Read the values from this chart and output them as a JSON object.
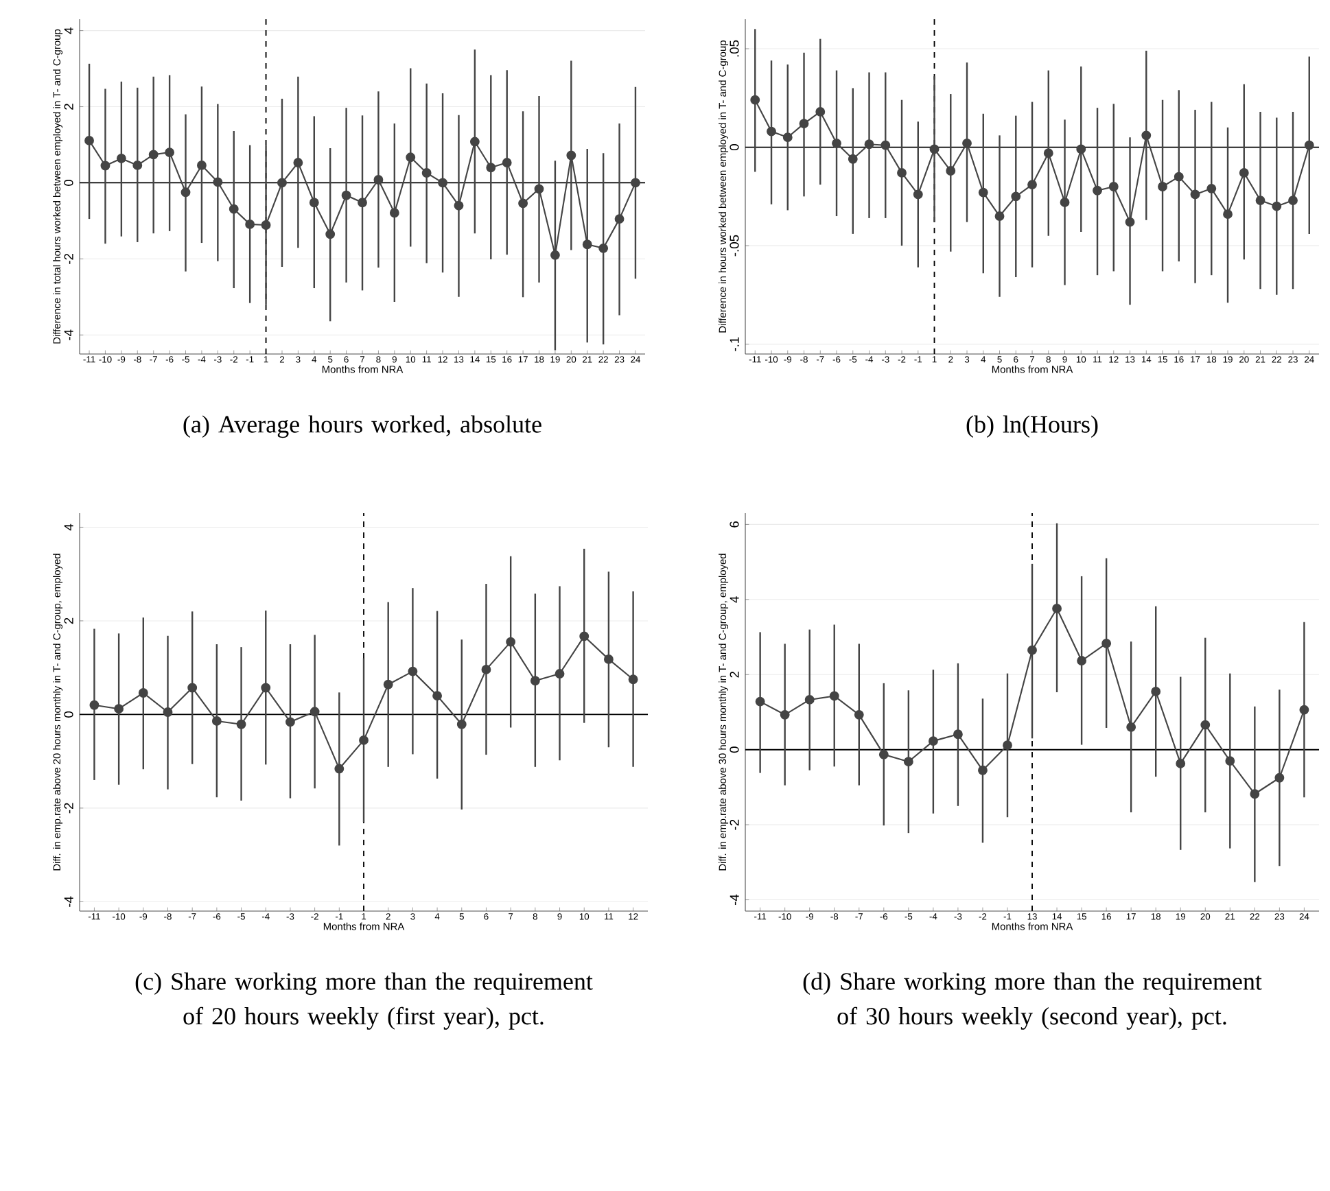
{
  "chart_data": [
    {
      "type": "line",
      "title": "(a) Average hours worked, absolute",
      "xlabel": "Months from NRA",
      "ylabel": "Difference in total hours worked between employed in T- and C-group",
      "categories": [
        "-11",
        "-10",
        "-9",
        "-8",
        "-7",
        "-6",
        "-5",
        "-4",
        "-3",
        "-2",
        "-1",
        "1",
        "2",
        "3",
        "4",
        "5",
        "6",
        "7",
        "8",
        "9",
        "10",
        "11",
        "12",
        "13",
        "14",
        "15",
        "16",
        "17",
        "18",
        "19",
        "20",
        "21",
        "22",
        "23",
        "24"
      ],
      "series": [
        {
          "color": "#444444",
          "values": [
            1.11,
            0.45,
            0.64,
            0.46,
            0.74,
            0.8,
            -0.25,
            0.46,
            0.02,
            -0.69,
            -1.09,
            -1.11,
            0,
            0.53,
            -0.52,
            -1.35,
            -0.33,
            -0.52,
            0.08,
            -0.79,
            0.67,
            0.26,
            0,
            -0.6,
            1.08,
            0.4,
            0.53,
            -0.54,
            -0.16,
            -1.9,
            0.72,
            -1.62,
            -1.72,
            -0.95,
            0
          ],
          "errors": [
            [
              -0.95,
              3.13
            ],
            [
              -1.6,
              2.47
            ],
            [
              -1.41,
              2.66
            ],
            [
              -1.56,
              2.5
            ],
            [
              -1.33,
              2.79
            ],
            [
              -1.27,
              2.83
            ],
            [
              -2.33,
              1.8
            ],
            [
              -1.58,
              2.53
            ],
            [
              -2.06,
              2.07
            ],
            [
              -2.77,
              1.36
            ],
            [
              -3.16,
              0.99
            ],
            [
              -3.2,
              0.98
            ],
            [
              -2.21,
              2.21
            ],
            [
              -1.71,
              2.79
            ],
            [
              -2.77,
              1.75
            ],
            [
              -3.64,
              0.91
            ],
            [
              -2.62,
              1.97
            ],
            [
              -2.83,
              1.77
            ],
            [
              -2.23,
              2.4
            ],
            [
              -3.13,
              1.56
            ],
            [
              -1.68,
              3.01
            ],
            [
              -2.11,
              2.61
            ],
            [
              -2.36,
              2.35
            ],
            [
              -3.0,
              1.78
            ],
            [
              -1.33,
              3.5
            ],
            [
              -2.01,
              2.83
            ],
            [
              -1.89,
              2.96
            ],
            [
              -3.01,
              1.88
            ],
            [
              -2.62,
              2.28
            ],
            [
              -4.4,
              0.58
            ],
            [
              -1.77,
              3.21
            ],
            [
              -4.2,
              0.89
            ],
            [
              -4.25,
              0.78
            ],
            [
              -3.48,
              1.56
            ],
            [
              -2.52,
              2.52
            ]
          ]
        }
      ],
      "ylim": [
        -4.5,
        4.3
      ],
      "yticks": [
        -4,
        -2,
        0,
        2,
        4
      ],
      "grid": "y",
      "marker": "circle",
      "line_style": "solid",
      "ref_lines": [
        {
          "axis": "y",
          "value": 0,
          "line_style": "solid",
          "color": "#000000"
        },
        {
          "axis": "x",
          "value": "1",
          "line_style": "dashed",
          "color": "#000000"
        }
      ]
    },
    {
      "type": "line",
      "title": "(b)  ln(Hours)",
      "xlabel": "Months from NRA",
      "ylabel": "Difference in hours worked between employed in T- and C-group",
      "categories": [
        "-11",
        "-10",
        "-9",
        "-8",
        "-7",
        "-6",
        "-5",
        "-4",
        "-3",
        "-2",
        "-1",
        "1",
        "2",
        "3",
        "4",
        "5",
        "6",
        "7",
        "8",
        "9",
        "10",
        "11",
        "12",
        "13",
        "14",
        "15",
        "16",
        "17",
        "18",
        "19",
        "20",
        "21",
        "22",
        "23",
        "24"
      ],
      "series": [
        {
          "color": "#444444",
          "values": [
            0.024,
            0.008,
            0.005,
            0.012,
            0.018,
            0.002,
            -0.006,
            0.0015,
            0.001,
            -0.013,
            -0.024,
            -0.001,
            -0.012,
            0.002,
            -0.023,
            -0.035,
            -0.025,
            -0.019,
            -0.003,
            -0.028,
            -0.001,
            -0.022,
            -0.02,
            -0.038,
            0.006,
            -0.02,
            -0.015,
            -0.024,
            -0.021,
            -0.034,
            -0.013,
            -0.027,
            -0.03,
            -0.027,
            0.001
          ],
          "errors": [
            [
              -0.0125,
              0.06
            ],
            [
              -0.029,
              0.044
            ],
            [
              -0.032,
              0.042
            ],
            [
              -0.025,
              0.048
            ],
            [
              -0.019,
              0.055
            ],
            [
              -0.035,
              0.039
            ],
            [
              -0.044,
              0.03
            ],
            [
              -0.036,
              0.038
            ],
            [
              -0.036,
              0.038
            ],
            [
              -0.05,
              0.024
            ],
            [
              -0.061,
              0.013
            ],
            [
              -0.038,
              0.036
            ],
            [
              -0.053,
              0.027
            ],
            [
              -0.038,
              0.043
            ],
            [
              -0.064,
              0.017
            ],
            [
              -0.076,
              0.006
            ],
            [
              -0.066,
              0.016
            ],
            [
              -0.061,
              0.023
            ],
            [
              -0.045,
              0.039
            ],
            [
              -0.07,
              0.014
            ],
            [
              -0.043,
              0.041
            ],
            [
              -0.065,
              0.02
            ],
            [
              -0.063,
              0.022
            ],
            [
              -0.08,
              0.005
            ],
            [
              -0.037,
              0.049
            ],
            [
              -0.063,
              0.024
            ],
            [
              -0.058,
              0.029
            ],
            [
              -0.069,
              0.019
            ],
            [
              -0.065,
              0.023
            ],
            [
              -0.079,
              0.01
            ],
            [
              -0.057,
              0.032
            ],
            [
              -0.072,
              0.018
            ],
            [
              -0.075,
              0.015
            ],
            [
              -0.072,
              0.018
            ],
            [
              -0.044,
              0.046
            ]
          ]
        }
      ],
      "ylim": [
        -0.105,
        0.065
      ],
      "yticks": [
        {
          "value": -0.1,
          "label": "-.1"
        },
        {
          "value": -0.05,
          "label": "-.05"
        },
        0,
        {
          "value": 0.05,
          "label": ".05"
        }
      ],
      "grid": "y",
      "marker": "circle",
      "line_style": "solid",
      "ref_lines": [
        {
          "axis": "y",
          "value": 0,
          "line_style": "solid",
          "color": "#000000"
        },
        {
          "axis": "x",
          "value": "1",
          "line_style": "dashed",
          "color": "#000000"
        }
      ]
    },
    {
      "type": "line",
      "title": "(c) Share working more than the requirement of 20 hours weekly (first year), pct.",
      "xlabel": "Months from NRA",
      "ylabel": "Diff. in emp.rate above 20 hours monthly in T- and C-group, employed",
      "categories": [
        "-11",
        "-10",
        "-9",
        "-8",
        "-7",
        "-6",
        "-5",
        "-4",
        "-3",
        "-2",
        "-1",
        "1",
        "2",
        "3",
        "4",
        "5",
        "6",
        "7",
        "8",
        "9",
        "10",
        "11",
        "12"
      ],
      "series": [
        {
          "color": "#444444",
          "values": [
            0.2,
            0.12,
            0.46,
            0.05,
            0.57,
            -0.14,
            -0.21,
            0.57,
            -0.16,
            0.06,
            -1.16,
            -0.55,
            0.64,
            0.92,
            0.4,
            -0.21,
            0.96,
            1.55,
            0.72,
            0.87,
            1.67,
            1.18,
            0.75
          ],
          "errors": [
            [
              -1.4,
              1.83
            ],
            [
              -1.5,
              1.73
            ],
            [
              -1.17,
              2.07
            ],
            [
              -1.6,
              1.68
            ],
            [
              -1.06,
              2.2
            ],
            [
              -1.77,
              1.5
            ],
            [
              -1.84,
              1.44
            ],
            [
              -1.07,
              2.22
            ],
            [
              -1.79,
              1.5
            ],
            [
              -1.58,
              1.7
            ],
            [
              -2.8,
              0.47
            ],
            [
              -2.3,
              1.2
            ],
            [
              -1.12,
              2.4
            ],
            [
              -0.85,
              2.7
            ],
            [
              -1.37,
              2.21
            ],
            [
              -2.03,
              1.6
            ],
            [
              -0.86,
              2.79
            ],
            [
              -0.28,
              3.38
            ],
            [
              -1.12,
              2.58
            ],
            [
              -0.98,
              2.74
            ],
            [
              -0.18,
              3.54
            ],
            [
              -0.7,
              3.05
            ],
            [
              -1.12,
              2.63
            ]
          ]
        }
      ],
      "ylim": [
        -4.2,
        4.3
      ],
      "yticks": [
        -4,
        -2,
        0,
        2,
        4
      ],
      "grid": "y",
      "marker": "circle",
      "line_style": "solid",
      "ref_lines": [
        {
          "axis": "y",
          "value": 0,
          "line_style": "solid",
          "color": "#000000"
        },
        {
          "axis": "x",
          "value": "1",
          "line_style": "dashed",
          "color": "#000000"
        }
      ]
    },
    {
      "type": "line",
      "title": "(d) Share working more than the requirement of 30 hours weekly (second year), pct.",
      "xlabel": "Months from NRA",
      "ylabel": "Diff. in emp.rate above 30 hours monthly in T- and C-group, employed",
      "categories": [
        "-11",
        "-10",
        "-9",
        "-8",
        "-7",
        "-6",
        "-5",
        "-4",
        "-3",
        "-2",
        "-1",
        "13",
        "14",
        "15",
        "16",
        "17",
        "18",
        "19",
        "20",
        "21",
        "22",
        "23",
        "24"
      ],
      "series": [
        {
          "color": "#444444",
          "values": [
            1.28,
            0.93,
            1.33,
            1.43,
            0.93,
            -0.13,
            -0.32,
            0.23,
            0.41,
            -0.55,
            0.12,
            2.65,
            3.76,
            2.37,
            2.83,
            0.6,
            1.55,
            -0.37,
            0.66,
            -0.3,
            -1.18,
            -0.75,
            1.06
          ],
          "errors": [
            [
              -0.62,
              3.13
            ],
            [
              -0.95,
              2.82
            ],
            [
              -0.55,
              3.2
            ],
            [
              -0.45,
              3.33
            ],
            [
              -0.95,
              2.82
            ],
            [
              -2.02,
              1.77
            ],
            [
              -2.22,
              1.58
            ],
            [
              -1.7,
              2.13
            ],
            [
              -1.5,
              2.3
            ],
            [
              -2.48,
              1.36
            ],
            [
              -1.8,
              2.03
            ],
            [
              0.3,
              4.95
            ],
            [
              1.53,
              6.03
            ],
            [
              0.13,
              4.62
            ],
            [
              0.58,
              5.1
            ],
            [
              -1.67,
              2.88
            ],
            [
              -0.72,
              3.82
            ],
            [
              -2.67,
              1.94
            ],
            [
              -1.67,
              2.98
            ],
            [
              -2.63,
              2.03
            ],
            [
              -3.53,
              1.15
            ],
            [
              -3.1,
              1.6
            ],
            [
              -1.27,
              3.4
            ]
          ]
        }
      ],
      "ylim": [
        -4.3,
        6.3
      ],
      "yticks": [
        -4,
        -2,
        0,
        2,
        4,
        6
      ],
      "grid": "y",
      "marker": "circle",
      "line_style": "solid",
      "ref_lines": [
        {
          "axis": "y",
          "value": 0,
          "line_style": "solid",
          "color": "#000000"
        },
        {
          "axis": "x",
          "value": "13",
          "line_style": "dashed",
          "color": "#000000"
        }
      ]
    }
  ]
}
